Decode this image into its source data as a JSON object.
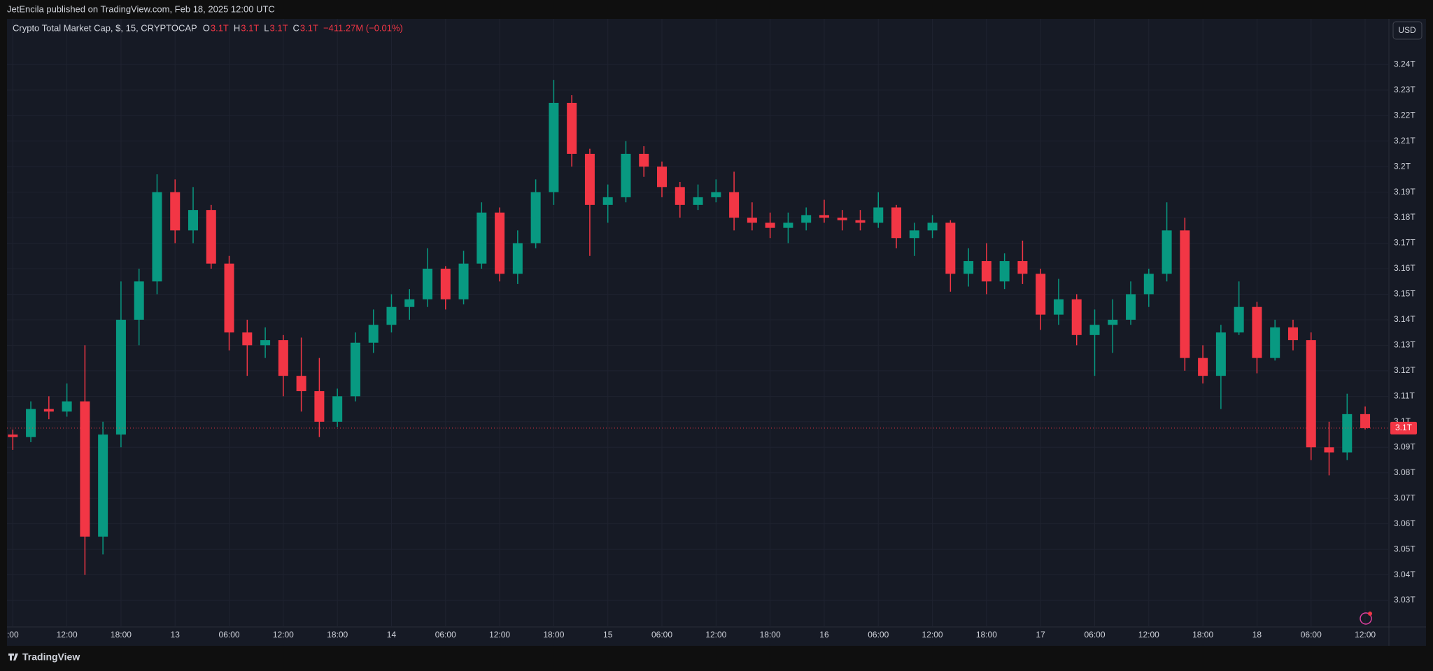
{
  "header": {
    "published": "JetEncila published on TradingView.com, Feb 18, 2025 12:00 UTC"
  },
  "footer": {
    "brand": "TradingView"
  },
  "currency_button": "USD",
  "chart_data": {
    "type": "candlestick",
    "title": "Crypto Total Market Cap, $, 15, CRYPTOCAP",
    "ohlc_legend": [
      {
        "key": "O",
        "value": "3.1T"
      },
      {
        "key": "H",
        "value": "3.1T"
      },
      {
        "key": "L",
        "value": "3.1T"
      },
      {
        "key": "C",
        "value": "3.1T"
      }
    ],
    "change": "−411.27M (−0.01%)",
    "last_price_label": "3.1T",
    "up_color": "#089981",
    "down_color": "#f23645",
    "grid": true,
    "categories": [
      ":00",
      null,
      null,
      "12:00",
      null,
      null,
      "18:00",
      null,
      null,
      "13",
      null,
      null,
      "06:00",
      null,
      null,
      "12:00",
      null,
      null,
      "18:00",
      null,
      null,
      "14",
      null,
      null,
      "06:00",
      null,
      null,
      "12:00",
      null,
      null,
      "18:00",
      null,
      null,
      "15",
      null,
      null,
      "06:00",
      null,
      null,
      "12:00",
      null,
      null,
      "18:00",
      null,
      null,
      "16",
      null,
      null,
      "06:00",
      null,
      null,
      "12:00",
      null,
      null,
      "18:00",
      null,
      null,
      "17",
      null,
      null,
      "06:00",
      null,
      null,
      "12:00",
      null,
      null,
      "18:00",
      null,
      null,
      "18",
      null,
      null,
      "06:00",
      null,
      null,
      "12:00"
    ],
    "open": [
      3.095,
      3.094,
      3.105,
      3.104,
      3.108,
      3.055,
      3.095,
      3.14,
      3.155,
      3.19,
      3.175,
      3.183,
      3.162,
      3.135,
      3.13,
      3.132,
      3.118,
      3.112,
      3.1,
      3.11,
      3.131,
      3.138,
      3.145,
      3.148,
      3.16,
      3.148,
      3.162,
      3.182,
      3.158,
      3.17,
      3.19,
      3.225,
      3.205,
      3.185,
      3.188,
      3.205,
      3.2,
      3.192,
      3.185,
      3.188,
      3.19,
      3.18,
      3.178,
      3.176,
      3.178,
      3.181,
      3.18,
      3.179,
      3.178,
      3.184,
      3.172,
      3.175,
      3.178,
      3.158,
      3.163,
      3.155,
      3.163,
      3.158,
      3.142,
      3.148,
      3.134,
      3.138,
      3.14,
      3.15,
      3.158,
      3.175,
      3.125,
      3.118,
      3.135,
      3.145,
      3.125,
      3.137,
      3.132,
      3.09,
      3.088,
      3.103
    ],
    "high": [
      3.097,
      3.108,
      3.11,
      3.115,
      3.13,
      3.1,
      3.155,
      3.16,
      3.197,
      3.195,
      3.192,
      3.185,
      3.165,
      3.14,
      3.137,
      3.134,
      3.133,
      3.125,
      3.113,
      3.135,
      3.144,
      3.15,
      3.152,
      3.168,
      3.161,
      3.167,
      3.186,
      3.184,
      3.175,
      3.195,
      3.234,
      3.228,
      3.207,
      3.193,
      3.21,
      3.208,
      3.202,
      3.194,
      3.193,
      3.195,
      3.198,
      3.186,
      3.182,
      3.182,
      3.184,
      3.187,
      3.183,
      3.183,
      3.19,
      3.185,
      3.178,
      3.181,
      3.179,
      3.168,
      3.17,
      3.166,
      3.171,
      3.16,
      3.156,
      3.15,
      3.144,
      3.148,
      3.155,
      3.16,
      3.186,
      3.18,
      3.13,
      3.138,
      3.155,
      3.147,
      3.14,
      3.14,
      3.135,
      3.1,
      3.111,
      3.106
    ],
    "low": [
      3.089,
      3.092,
      3.101,
      3.102,
      3.04,
      3.048,
      3.09,
      3.13,
      3.15,
      3.17,
      3.17,
      3.16,
      3.128,
      3.118,
      3.125,
      3.11,
      3.104,
      3.094,
      3.098,
      3.108,
      3.127,
      3.135,
      3.14,
      3.145,
      3.144,
      3.146,
      3.16,
      3.155,
      3.154,
      3.168,
      3.185,
      3.2,
      3.165,
      3.178,
      3.186,
      3.196,
      3.188,
      3.18,
      3.183,
      3.186,
      3.175,
      3.175,
      3.172,
      3.17,
      3.175,
      3.178,
      3.175,
      3.175,
      3.176,
      3.168,
      3.165,
      3.172,
      3.151,
      3.153,
      3.15,
      3.152,
      3.154,
      3.136,
      3.138,
      3.13,
      3.118,
      3.127,
      3.138,
      3.145,
      3.155,
      3.12,
      3.115,
      3.105,
      3.134,
      3.119,
      3.124,
      3.128,
      3.085,
      3.079,
      3.085,
      3.097
    ],
    "close": [
      3.094,
      3.105,
      3.104,
      3.108,
      3.055,
      3.095,
      3.14,
      3.155,
      3.19,
      3.175,
      3.183,
      3.162,
      3.135,
      3.13,
      3.132,
      3.118,
      3.112,
      3.1,
      3.11,
      3.131,
      3.138,
      3.145,
      3.148,
      3.16,
      3.148,
      3.162,
      3.182,
      3.158,
      3.17,
      3.19,
      3.225,
      3.205,
      3.185,
      3.188,
      3.205,
      3.2,
      3.192,
      3.185,
      3.188,
      3.19,
      3.18,
      3.178,
      3.176,
      3.178,
      3.181,
      3.18,
      3.179,
      3.178,
      3.184,
      3.172,
      3.175,
      3.178,
      3.158,
      3.163,
      3.155,
      3.163,
      3.158,
      3.142,
      3.148,
      3.134,
      3.138,
      3.14,
      3.15,
      3.158,
      3.175,
      3.125,
      3.118,
      3.135,
      3.145,
      3.125,
      3.137,
      3.132,
      3.09,
      3.088,
      3.103,
      3.0975
    ],
    "ylim": [
      3.0196,
      3.2579
    ],
    "yticks": [
      {
        "value": 3.03,
        "label": "3.03T"
      },
      {
        "value": 3.04,
        "label": "3.04T"
      },
      {
        "value": 3.05,
        "label": "3.05T"
      },
      {
        "value": 3.06,
        "label": "3.06T"
      },
      {
        "value": 3.07,
        "label": "3.07T"
      },
      {
        "value": 3.08,
        "label": "3.08T"
      },
      {
        "value": 3.09,
        "label": "3.09T"
      },
      {
        "value": 3.1,
        "label": "3.1T"
      },
      {
        "value": 3.11,
        "label": "3.11T"
      },
      {
        "value": 3.12,
        "label": "3.12T"
      },
      {
        "value": 3.13,
        "label": "3.13T"
      },
      {
        "value": 3.14,
        "label": "3.14T"
      },
      {
        "value": 3.15,
        "label": "3.15T"
      },
      {
        "value": 3.16,
        "label": "3.16T"
      },
      {
        "value": 3.17,
        "label": "3.17T"
      },
      {
        "value": 3.18,
        "label": "3.18T"
      },
      {
        "value": 3.19,
        "label": "3.19T"
      },
      {
        "value": 3.2,
        "label": "3.2T"
      },
      {
        "value": 3.21,
        "label": "3.21T"
      },
      {
        "value": 3.22,
        "label": "3.22T"
      },
      {
        "value": 3.23,
        "label": "3.23T"
      },
      {
        "value": 3.24,
        "label": "3.24T"
      }
    ]
  }
}
